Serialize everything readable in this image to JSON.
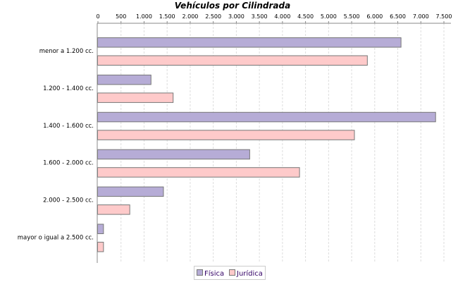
{
  "chart_data": {
    "type": "bar",
    "orientation": "horizontal",
    "title": "Vehículos por Cilindrada",
    "categories": [
      "menor a 1.200 cc.",
      "1.200 - 1.400 cc.",
      "1.400 - 1.600 cc.",
      "1.600 - 2.000 cc.",
      "2.000 - 2.500 cc.",
      "mayor o igual a 2.500 cc."
    ],
    "series": [
      {
        "name": "Física",
        "color": "#b6acd6",
        "values": [
          6570,
          1150,
          7320,
          3290,
          1420,
          120
        ]
      },
      {
        "name": "Jurídica",
        "color": "#fecaca",
        "values": [
          5840,
          1630,
          5560,
          4370,
          690,
          120
        ]
      }
    ],
    "value_ticks": [
      "0",
      "500",
      "1.000",
      "1.500",
      "2.000",
      "2.500",
      "3.000",
      "3.500",
      "4.000",
      "4.500",
      "5.000",
      "5.500",
      "6.000",
      "6.500",
      "7.000",
      "7.500"
    ],
    "xlim": [
      0,
      7660
    ],
    "value_axis_position": "top",
    "grid": true,
    "legend": "bottom"
  }
}
